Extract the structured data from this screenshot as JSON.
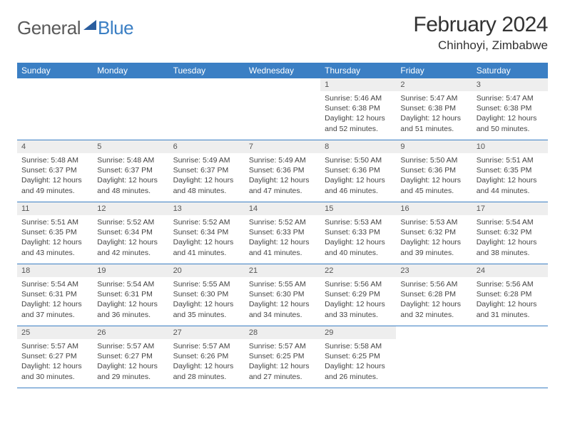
{
  "logo": {
    "general": "General",
    "blue": "Blue"
  },
  "title": "February 2024",
  "location": "Chinhoyi, Zimbabwe",
  "colors": {
    "header_bg": "#3b7fc4",
    "daynum_bg": "#eeeeee",
    "text": "#333333",
    "divider": "#3b7fc4"
  },
  "day_names": [
    "Sunday",
    "Monday",
    "Tuesday",
    "Wednesday",
    "Thursday",
    "Friday",
    "Saturday"
  ],
  "weeks": [
    [
      null,
      null,
      null,
      null,
      {
        "n": "1",
        "sunrise": "5:46 AM",
        "sunset": "6:38 PM",
        "daylight": "12 hours and 52 minutes."
      },
      {
        "n": "2",
        "sunrise": "5:47 AM",
        "sunset": "6:38 PM",
        "daylight": "12 hours and 51 minutes."
      },
      {
        "n": "3",
        "sunrise": "5:47 AM",
        "sunset": "6:38 PM",
        "daylight": "12 hours and 50 minutes."
      }
    ],
    [
      {
        "n": "4",
        "sunrise": "5:48 AM",
        "sunset": "6:37 PM",
        "daylight": "12 hours and 49 minutes."
      },
      {
        "n": "5",
        "sunrise": "5:48 AM",
        "sunset": "6:37 PM",
        "daylight": "12 hours and 48 minutes."
      },
      {
        "n": "6",
        "sunrise": "5:49 AM",
        "sunset": "6:37 PM",
        "daylight": "12 hours and 48 minutes."
      },
      {
        "n": "7",
        "sunrise": "5:49 AM",
        "sunset": "6:36 PM",
        "daylight": "12 hours and 47 minutes."
      },
      {
        "n": "8",
        "sunrise": "5:50 AM",
        "sunset": "6:36 PM",
        "daylight": "12 hours and 46 minutes."
      },
      {
        "n": "9",
        "sunrise": "5:50 AM",
        "sunset": "6:36 PM",
        "daylight": "12 hours and 45 minutes."
      },
      {
        "n": "10",
        "sunrise": "5:51 AM",
        "sunset": "6:35 PM",
        "daylight": "12 hours and 44 minutes."
      }
    ],
    [
      {
        "n": "11",
        "sunrise": "5:51 AM",
        "sunset": "6:35 PM",
        "daylight": "12 hours and 43 minutes."
      },
      {
        "n": "12",
        "sunrise": "5:52 AM",
        "sunset": "6:34 PM",
        "daylight": "12 hours and 42 minutes."
      },
      {
        "n": "13",
        "sunrise": "5:52 AM",
        "sunset": "6:34 PM",
        "daylight": "12 hours and 41 minutes."
      },
      {
        "n": "14",
        "sunrise": "5:52 AM",
        "sunset": "6:33 PM",
        "daylight": "12 hours and 41 minutes."
      },
      {
        "n": "15",
        "sunrise": "5:53 AM",
        "sunset": "6:33 PM",
        "daylight": "12 hours and 40 minutes."
      },
      {
        "n": "16",
        "sunrise": "5:53 AM",
        "sunset": "6:32 PM",
        "daylight": "12 hours and 39 minutes."
      },
      {
        "n": "17",
        "sunrise": "5:54 AM",
        "sunset": "6:32 PM",
        "daylight": "12 hours and 38 minutes."
      }
    ],
    [
      {
        "n": "18",
        "sunrise": "5:54 AM",
        "sunset": "6:31 PM",
        "daylight": "12 hours and 37 minutes."
      },
      {
        "n": "19",
        "sunrise": "5:54 AM",
        "sunset": "6:31 PM",
        "daylight": "12 hours and 36 minutes."
      },
      {
        "n": "20",
        "sunrise": "5:55 AM",
        "sunset": "6:30 PM",
        "daylight": "12 hours and 35 minutes."
      },
      {
        "n": "21",
        "sunrise": "5:55 AM",
        "sunset": "6:30 PM",
        "daylight": "12 hours and 34 minutes."
      },
      {
        "n": "22",
        "sunrise": "5:56 AM",
        "sunset": "6:29 PM",
        "daylight": "12 hours and 33 minutes."
      },
      {
        "n": "23",
        "sunrise": "5:56 AM",
        "sunset": "6:28 PM",
        "daylight": "12 hours and 32 minutes."
      },
      {
        "n": "24",
        "sunrise": "5:56 AM",
        "sunset": "6:28 PM",
        "daylight": "12 hours and 31 minutes."
      }
    ],
    [
      {
        "n": "25",
        "sunrise": "5:57 AM",
        "sunset": "6:27 PM",
        "daylight": "12 hours and 30 minutes."
      },
      {
        "n": "26",
        "sunrise": "5:57 AM",
        "sunset": "6:27 PM",
        "daylight": "12 hours and 29 minutes."
      },
      {
        "n": "27",
        "sunrise": "5:57 AM",
        "sunset": "6:26 PM",
        "daylight": "12 hours and 28 minutes."
      },
      {
        "n": "28",
        "sunrise": "5:57 AM",
        "sunset": "6:25 PM",
        "daylight": "12 hours and 27 minutes."
      },
      {
        "n": "29",
        "sunrise": "5:58 AM",
        "sunset": "6:25 PM",
        "daylight": "12 hours and 26 minutes."
      },
      null,
      null
    ]
  ],
  "labels": {
    "sunrise_prefix": "Sunrise: ",
    "sunset_prefix": "Sunset: ",
    "daylight_prefix": "Daylight: "
  }
}
